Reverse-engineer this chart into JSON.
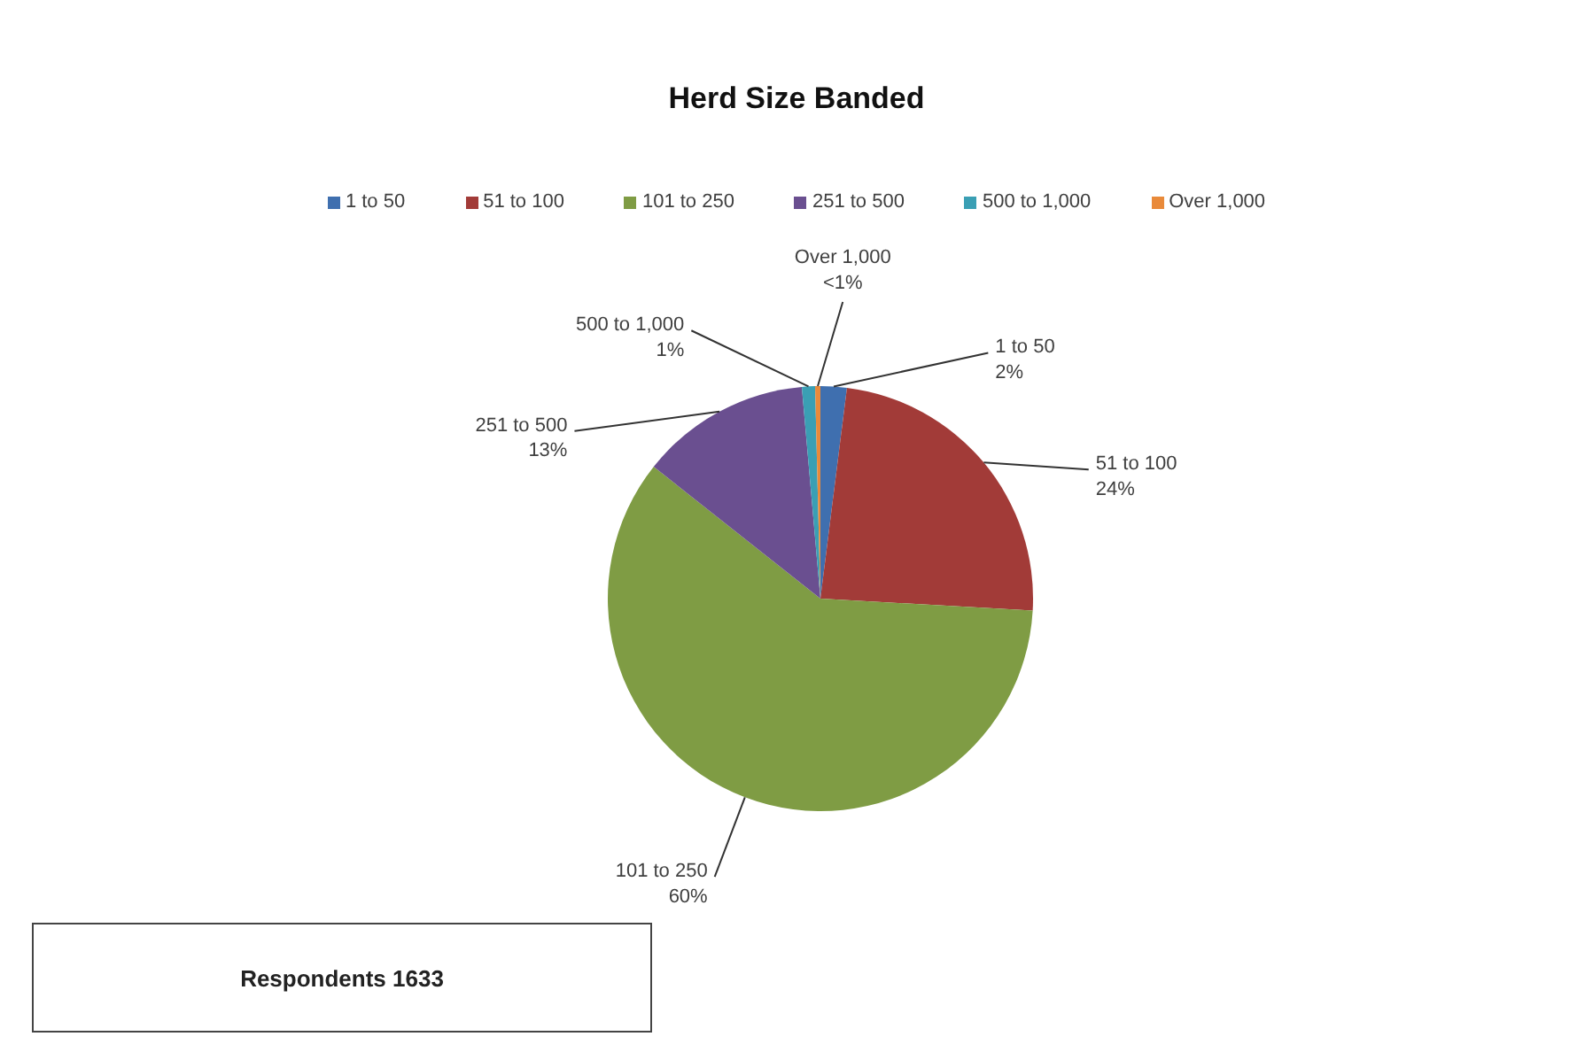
{
  "chart_data": {
    "type": "pie",
    "title": "Herd Size Banded",
    "categories": [
      "1 to 50",
      "51 to 100",
      "101 to 250",
      "251 to 500",
      "500 to 1,000",
      "Over 1,000"
    ],
    "values": [
      2,
      24,
      60,
      13,
      1,
      0.4
    ],
    "value_labels": [
      "2%",
      "24%",
      "60%",
      "13%",
      "1%",
      "<1%"
    ],
    "colors": [
      "#3f6faf",
      "#a23b38",
      "#7f9c44",
      "#6a4f90",
      "#3a9fb4",
      "#e98a3a"
    ],
    "legend": "top",
    "annotations": [
      "Respondents 1633"
    ]
  }
}
